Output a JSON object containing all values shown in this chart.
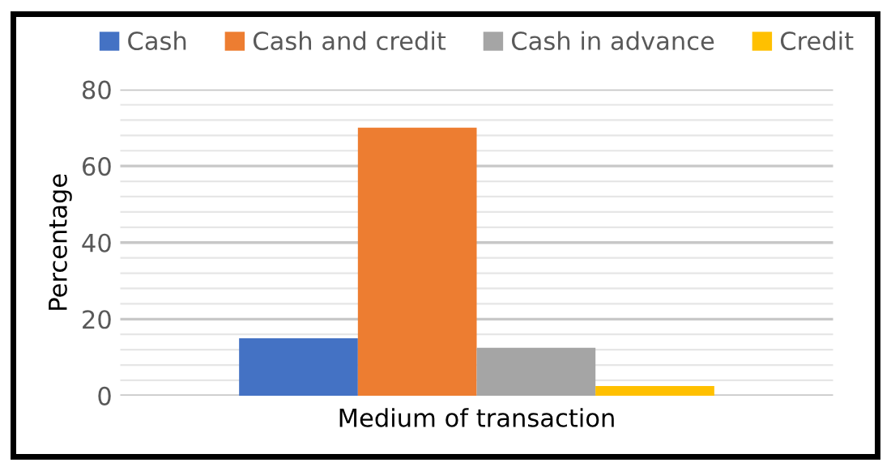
{
  "chart_data": {
    "type": "bar",
    "xlabel": "Medium of transaction",
    "ylabel": "Percentage",
    "categories": [
      null
    ],
    "series": [
      {
        "name": "Cash",
        "color": "#4472c4",
        "values": [
          15
        ]
      },
      {
        "name": "Cash and credit",
        "color": "#ed7d31",
        "values": [
          70
        ]
      },
      {
        "name": "Cash in advance",
        "color": "#a5a5a5",
        "values": [
          12.5
        ]
      },
      {
        "name": "Credit",
        "color": "#ffc000",
        "values": [
          2.5
        ]
      }
    ],
    "ylim": [
      0,
      80
    ],
    "yticks": [
      0,
      {
        "value": 4,
        "label": null
      },
      {
        "value": 8,
        "label": null
      },
      {
        "value": 12,
        "label": null
      },
      {
        "value": 16,
        "label": null
      },
      20,
      {
        "value": 24,
        "label": null
      },
      {
        "value": 28,
        "label": null
      },
      {
        "value": 32,
        "label": null
      },
      {
        "value": 36,
        "label": null
      },
      40,
      {
        "value": 44,
        "label": null
      },
      {
        "value": 48,
        "label": null
      },
      {
        "value": 52,
        "label": null
      },
      {
        "value": 56,
        "label": null
      },
      60,
      {
        "value": 64,
        "label": null
      },
      {
        "value": 68,
        "label": null
      },
      {
        "value": 72,
        "label": null
      },
      {
        "value": 76,
        "label": null
      },
      80
    ],
    "grid": "y",
    "legend": "top"
  }
}
